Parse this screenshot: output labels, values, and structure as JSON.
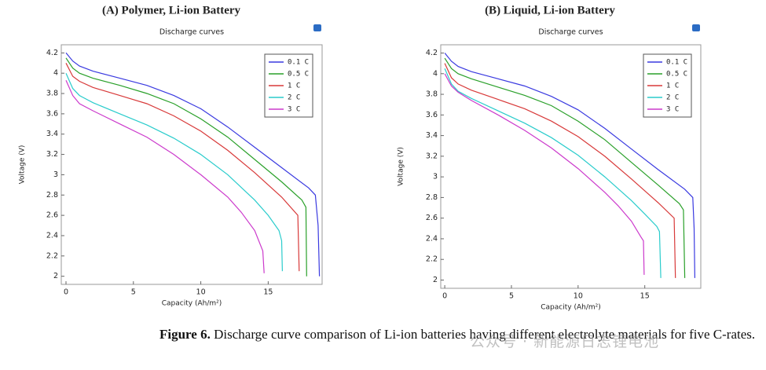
{
  "chart_data": [
    {
      "type": "line",
      "title": "(A) Polymer, Li-ion Battery",
      "subtitle": "Discharge curves",
      "x_label": "Capacity (Ah/m²)",
      "y_label": "Voltage (V)",
      "xlim": [
        -0.35,
        19
      ],
      "ylim": [
        1.92,
        4.28
      ],
      "xticks": [
        0,
        5,
        10,
        15
      ],
      "yticks": [
        2,
        2.2,
        2.4,
        2.6,
        2.8,
        3,
        3.2,
        3.4,
        3.6,
        3.8,
        4,
        4.2
      ],
      "legend": "upper right",
      "series": [
        {
          "name": "0.1 C",
          "color": "#3a3ae0",
          "x": [
            0,
            0.5,
            1,
            2,
            4,
            6,
            8,
            10,
            12,
            14,
            16,
            18,
            18.5,
            18.7,
            18.8
          ],
          "values": [
            4.2,
            4.12,
            4.07,
            4.02,
            3.95,
            3.88,
            3.78,
            3.65,
            3.47,
            3.27,
            3.07,
            2.87,
            2.8,
            2.5,
            2.0
          ]
        },
        {
          "name": "0.5 C",
          "color": "#2aa02a",
          "x": [
            0,
            0.5,
            1,
            2,
            4,
            6,
            8,
            10,
            12,
            14,
            16,
            17.5,
            17.8,
            17.85
          ],
          "values": [
            4.15,
            4.05,
            4.0,
            3.95,
            3.88,
            3.8,
            3.7,
            3.55,
            3.37,
            3.15,
            2.93,
            2.75,
            2.68,
            2.0
          ]
        },
        {
          "name": "1 C",
          "color": "#d83a3a",
          "x": [
            0,
            0.5,
            1,
            2,
            4,
            6,
            8,
            10,
            12,
            14,
            16,
            17.2,
            17.3
          ],
          "values": [
            4.1,
            3.97,
            3.92,
            3.86,
            3.78,
            3.7,
            3.58,
            3.43,
            3.24,
            3.02,
            2.78,
            2.6,
            2.05
          ]
        },
        {
          "name": "2 C",
          "color": "#2acccc",
          "x": [
            0,
            0.5,
            1,
            2,
            4,
            6,
            8,
            10,
            12,
            14,
            15,
            15.8,
            16,
            16.05
          ],
          "values": [
            4.0,
            3.85,
            3.78,
            3.71,
            3.6,
            3.49,
            3.36,
            3.2,
            3.0,
            2.75,
            2.6,
            2.45,
            2.35,
            2.05
          ]
        },
        {
          "name": "3 C",
          "color": "#cc3acc",
          "x": [
            0,
            0.5,
            1,
            2,
            4,
            6,
            8,
            10,
            12,
            13,
            14,
            14.6,
            14.7
          ],
          "values": [
            3.93,
            3.78,
            3.7,
            3.63,
            3.5,
            3.37,
            3.2,
            3.0,
            2.78,
            2.63,
            2.45,
            2.25,
            2.03
          ]
        }
      ]
    },
    {
      "type": "line",
      "title": "(B) Liquid, Li-ion Battery",
      "subtitle": "Discharge curves",
      "x_label": "Capacity (Ah/m²)",
      "y_label": "Voltage (V)",
      "xlim": [
        -0.3,
        19.2
      ],
      "ylim": [
        1.92,
        4.28
      ],
      "xticks": [
        0,
        5,
        10,
        15
      ],
      "yticks": [
        2,
        2.2,
        2.4,
        2.6,
        2.8,
        3,
        3.2,
        3.4,
        3.6,
        3.8,
        4,
        4.2
      ],
      "legend": "upper right",
      "series": [
        {
          "name": "0.1 C",
          "color": "#3a3ae0",
          "x": [
            0,
            0.5,
            1,
            2,
            4,
            6,
            8,
            10,
            12,
            14,
            16,
            18,
            18.6,
            18.7,
            18.75
          ],
          "values": [
            4.2,
            4.12,
            4.07,
            4.02,
            3.95,
            3.88,
            3.78,
            3.65,
            3.47,
            3.27,
            3.07,
            2.88,
            2.8,
            2.5,
            2.02
          ]
        },
        {
          "name": "0.5 C",
          "color": "#2aa02a",
          "x": [
            0,
            0.5,
            1,
            2,
            4,
            6,
            8,
            10,
            12,
            14,
            16,
            17.6,
            17.9,
            18.0
          ],
          "values": [
            4.15,
            4.05,
            4.0,
            3.95,
            3.87,
            3.79,
            3.69,
            3.54,
            3.36,
            3.14,
            2.92,
            2.74,
            2.68,
            2.02
          ]
        },
        {
          "name": "1 C",
          "color": "#d83a3a",
          "x": [
            0,
            0.5,
            1,
            2,
            4,
            6,
            8,
            10,
            12,
            14,
            16,
            17.2,
            17.3
          ],
          "values": [
            4.1,
            3.96,
            3.9,
            3.84,
            3.75,
            3.66,
            3.54,
            3.39,
            3.2,
            2.98,
            2.75,
            2.6,
            2.02
          ]
        },
        {
          "name": "2 C",
          "color": "#2acccc",
          "x": [
            0,
            0.5,
            1,
            2,
            4,
            6,
            8,
            10,
            12,
            14,
            15,
            15.9,
            16.1,
            16.2
          ],
          "values": [
            4.05,
            3.9,
            3.83,
            3.76,
            3.64,
            3.52,
            3.38,
            3.21,
            3.0,
            2.77,
            2.64,
            2.52,
            2.47,
            2.02
          ]
        },
        {
          "name": "3 C",
          "color": "#cc3acc",
          "x": [
            0,
            0.5,
            1,
            2,
            4,
            6,
            8,
            10,
            12,
            13,
            14,
            14.7,
            14.9,
            14.95
          ],
          "values": [
            4.0,
            3.88,
            3.82,
            3.74,
            3.6,
            3.45,
            3.28,
            3.08,
            2.85,
            2.72,
            2.57,
            2.42,
            2.38,
            2.05
          ]
        }
      ]
    }
  ],
  "caption": {
    "label": "Figure 6.",
    "text": "Discharge curve comparison of Li-ion batteries having different electrolyte materials for five C-rates."
  },
  "watermark": "公众号 · 新能源日志锂电池"
}
